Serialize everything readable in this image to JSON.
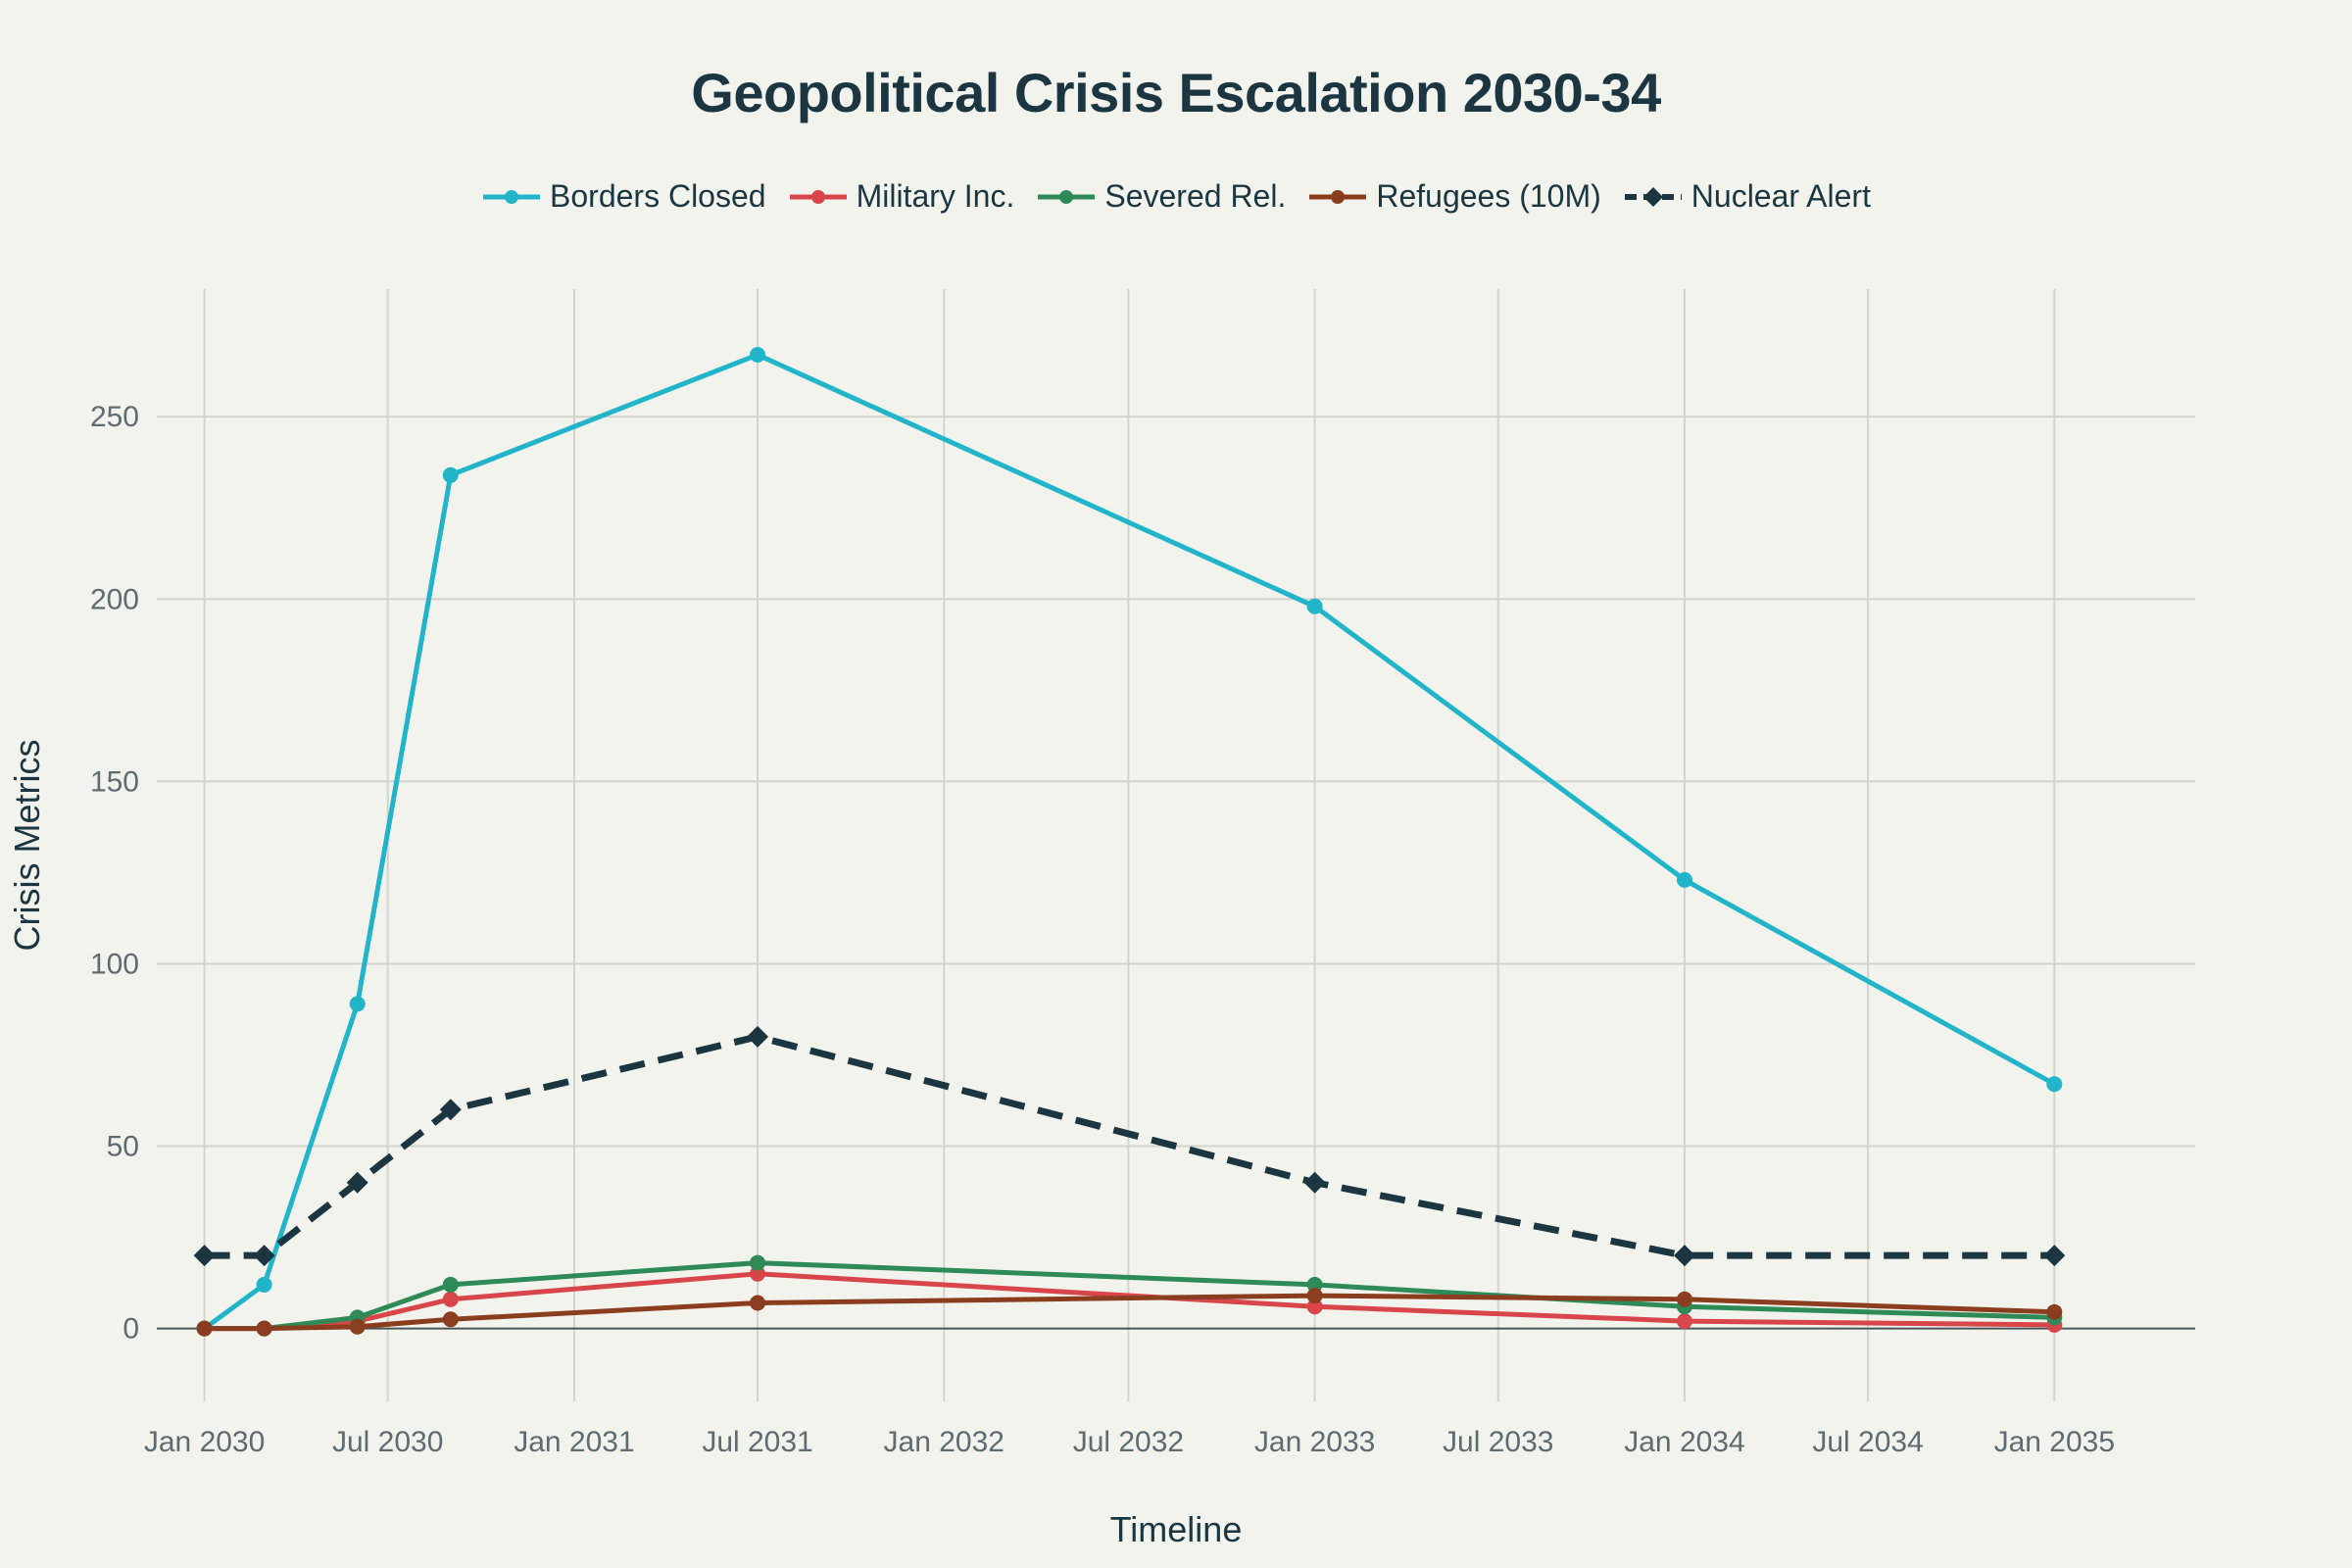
{
  "chart_data": {
    "type": "line",
    "title": "Geopolitical Crisis Escalation 2030-34",
    "xlabel": "Timeline",
    "ylabel": "Crisis Metrics",
    "x_tick_labels": [
      "Jan 2030",
      "Jul 2030",
      "Jan 2031",
      "Jul 2031",
      "Jan 2032",
      "Jul 2032",
      "Jan 2033",
      "Jul 2033",
      "Jan 2034",
      "Jul 2034",
      "Jan 2035"
    ],
    "y_tick_labels": [
      "0",
      "50",
      "100",
      "150",
      "200",
      "250"
    ],
    "y_ticks": [
      0,
      50,
      100,
      150,
      200,
      250
    ],
    "ylim": [
      -20,
      285
    ],
    "xlim": [
      "2029-11-15",
      "2035-05-20"
    ],
    "grid": true,
    "legend_position": "top-center",
    "x": [
      "2030-01-01",
      "2030-03-01",
      "2030-06-01",
      "2030-09-01",
      "2031-07-01",
      "2033-01-01",
      "2034-01-01",
      "2035-01-01"
    ],
    "series": [
      {
        "name": "Borders Closed",
        "color": "#22b5c9",
        "marker": "circle",
        "dash": "solid",
        "values": [
          0,
          12,
          89,
          234,
          267,
          198,
          123,
          67
        ]
      },
      {
        "name": "Military Inc.",
        "color": "#d9464a",
        "marker": "circle",
        "dash": "solid",
        "values": [
          0,
          0,
          2,
          8,
          15,
          6,
          2,
          1
        ]
      },
      {
        "name": "Severed Rel.",
        "color": "#2e8b57",
        "marker": "circle",
        "dash": "solid",
        "values": [
          0,
          0,
          3,
          12,
          18,
          12,
          6,
          3
        ]
      },
      {
        "name": "Refugees (10M)",
        "color": "#8b3e1f",
        "marker": "circle",
        "dash": "solid",
        "values": [
          0,
          0,
          0.5,
          2.5,
          7,
          9,
          8,
          4.5
        ]
      },
      {
        "name": "Nuclear Alert",
        "color": "#1b3640",
        "marker": "diamond",
        "dash": "dash",
        "values": [
          20,
          20,
          40,
          60,
          80,
          40,
          20,
          20
        ]
      }
    ]
  }
}
